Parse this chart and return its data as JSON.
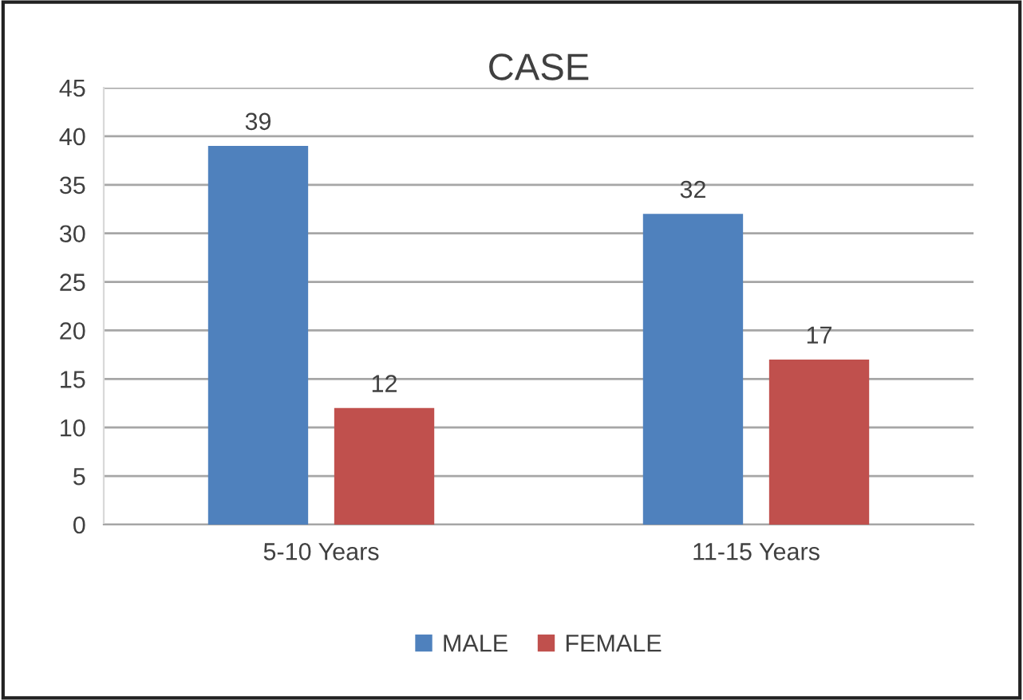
{
  "chart_data": {
    "type": "bar",
    "title": "CASE",
    "categories": [
      "5-10 Years",
      "11-15 Years"
    ],
    "series": [
      {
        "name": "MALE",
        "color": "#4f81bd",
        "values": [
          39,
          32
        ]
      },
      {
        "name": "FEMALE",
        "color": "#c0504d",
        "values": [
          12,
          17
        ]
      }
    ],
    "ylim": [
      0,
      45
    ],
    "yticks": [
      0,
      5,
      10,
      15,
      20,
      25,
      30,
      35,
      40,
      45
    ],
    "grid": "y",
    "legend": "bottom",
    "data_labels": true
  }
}
